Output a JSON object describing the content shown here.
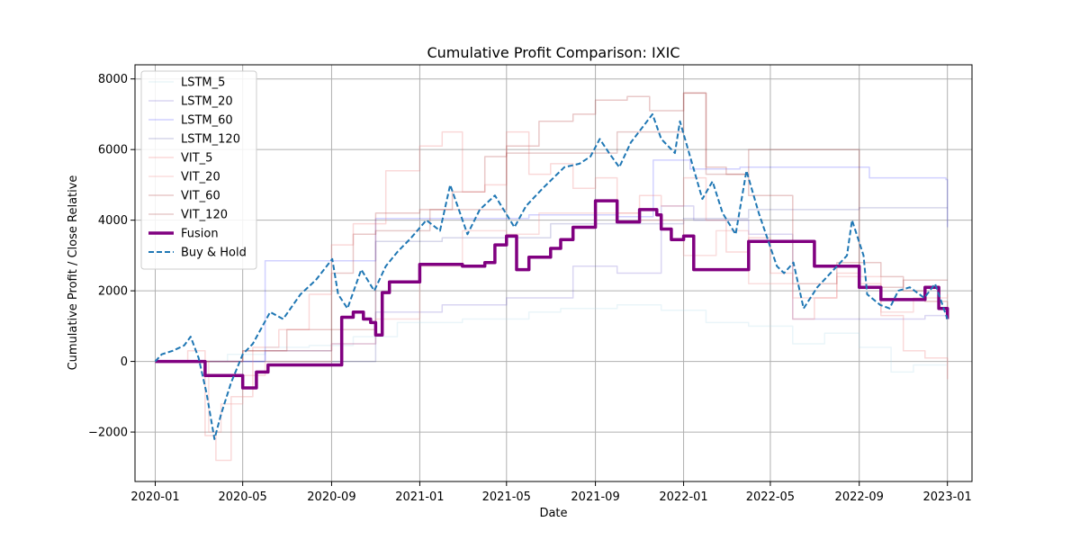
{
  "chart_data": {
    "type": "line",
    "title": "Cumulative Profit Comparison: IXIC",
    "xlabel": "Date",
    "ylabel": "Cumulative Profit / Close Relative",
    "x_ticks": [
      "2020-01",
      "2020-05",
      "2020-09",
      "2021-01",
      "2021-05",
      "2021-09",
      "2022-01",
      "2022-05",
      "2022-09",
      "2023-01"
    ],
    "y_ticks": [
      -2000,
      0,
      2000,
      4000,
      6000,
      8000
    ],
    "xlim": [
      "2019-12-04",
      "2023-02-04"
    ],
    "ylim": [
      -3400,
      8400
    ],
    "grid": true,
    "legend_position": "top-left",
    "series": [
      {
        "name": "LSTM_5",
        "color": "#add8e6",
        "opacity": 0.25,
        "width": 1.5,
        "dash": false,
        "step": true,
        "x": [
          "2020-01-01",
          "2020-03-10",
          "2020-04-10",
          "2020-06-01",
          "2020-08-01",
          "2020-10-01",
          "2020-12-01",
          "2021-03-01",
          "2021-06-01",
          "2021-07-15",
          "2021-10-01",
          "2021-12-01",
          "2022-02-01",
          "2022-04-01",
          "2022-06-01",
          "2022-07-15",
          "2022-09-01",
          "2022-10-15",
          "2022-11-15",
          "2023-01-01"
        ],
        "y": [
          0,
          0,
          200,
          400,
          450,
          700,
          1100,
          1200,
          1400,
          1500,
          1600,
          1450,
          1100,
          1000,
          500,
          800,
          400,
          -300,
          -100,
          -100
        ]
      },
      {
        "name": "LSTM_20",
        "color": "#6a5acd",
        "opacity": 0.25,
        "width": 1.5,
        "dash": false,
        "step": true,
        "x": [
          "2020-01-01",
          "2020-04-01",
          "2020-06-01",
          "2020-09-01",
          "2020-11-01",
          "2021-02-01",
          "2021-05-01",
          "2021-08-01",
          "2021-10-01",
          "2021-12-01",
          "2022-01-15",
          "2022-04-01",
          "2022-06-01",
          "2022-08-01",
          "2022-10-01",
          "2022-12-01",
          "2023-01-01"
        ],
        "y": [
          0,
          0,
          300,
          500,
          1400,
          1600,
          1800,
          2700,
          2500,
          4400,
          4000,
          3600,
          1200,
          1200,
          1200,
          1300,
          1300
        ]
      },
      {
        "name": "LSTM_60",
        "color": "#0000ff",
        "opacity": 0.18,
        "width": 1.5,
        "dash": false,
        "step": true,
        "x": [
          "2020-01-01",
          "2020-05-20",
          "2020-06-01",
          "2020-11-01",
          "2021-06-01",
          "2021-10-01",
          "2021-11-20",
          "2022-01-10",
          "2022-03-20",
          "2022-06-01",
          "2022-07-01",
          "2022-08-28",
          "2022-09-15",
          "2022-12-30",
          "2023-01-01"
        ],
        "y": [
          0,
          0,
          2850,
          4050,
          4150,
          4100,
          5700,
          5450,
          5500,
          5500,
          5500,
          5500,
          5200,
          5150,
          3800
        ]
      },
      {
        "name": "LSTM_120",
        "color": "#1a1a8c",
        "opacity": 0.18,
        "width": 1.5,
        "dash": false,
        "step": true,
        "x": [
          "2020-01-01",
          "2020-11-01",
          "2021-02-01",
          "2021-07-01",
          "2021-10-01",
          "2022-01-01",
          "2022-04-01",
          "2022-09-01",
          "2023-01-01"
        ],
        "y": [
          0,
          3400,
          3500,
          3900,
          3900,
          4050,
          4300,
          4350,
          4350
        ]
      },
      {
        "name": "VIT_5",
        "color": "#f08080",
        "opacity": 0.3,
        "width": 1.5,
        "dash": false,
        "step": true,
        "x": [
          "2020-01-01",
          "2020-02-15",
          "2020-03-10",
          "2020-03-25",
          "2020-04-15",
          "2020-05-15",
          "2020-06-20",
          "2020-08-01",
          "2020-09-01",
          "2020-10-01",
          "2020-11-15",
          "2021-01-01",
          "2021-02-01",
          "2021-03-01",
          "2021-04-01",
          "2021-05-01",
          "2021-06-01",
          "2021-07-01",
          "2021-08-01",
          "2021-09-01",
          "2021-10-01",
          "2021-11-01",
          "2021-12-01",
          "2022-01-01",
          "2022-02-01",
          "2022-03-01",
          "2022-04-01",
          "2022-05-01",
          "2022-06-01",
          "2022-07-01",
          "2022-08-01",
          "2022-09-01",
          "2022-10-01",
          "2022-11-01",
          "2022-12-01",
          "2023-01-01"
        ],
        "y": [
          0,
          300,
          -2100,
          -2800,
          -1000,
          400,
          900,
          1900,
          3300,
          3900,
          5400,
          6100,
          6500,
          4800,
          5000,
          6500,
          5300,
          5600,
          4900,
          5200,
          4200,
          4700,
          4400,
          5200,
          4000,
          3100,
          3500,
          2500,
          1200,
          1800,
          2500,
          2200,
          1300,
          300,
          100,
          -500
        ]
      },
      {
        "name": "VIT_20",
        "color": "#f0a0a0",
        "opacity": 0.35,
        "width": 1.5,
        "dash": false,
        "step": true,
        "x": [
          "2020-01-01",
          "2020-03-01",
          "2020-03-15",
          "2020-04-01",
          "2020-05-01",
          "2020-06-01",
          "2020-09-01",
          "2020-11-01",
          "2021-01-01",
          "2021-03-01",
          "2021-05-01",
          "2021-06-15",
          "2021-09-01",
          "2021-11-01",
          "2022-01-01",
          "2022-02-15",
          "2022-04-01",
          "2022-06-01",
          "2022-08-01",
          "2022-10-01",
          "2022-11-15",
          "2023-01-01"
        ],
        "y": [
          0,
          0,
          -2000,
          -1200,
          -400,
          0,
          500,
          1200,
          2700,
          3700,
          3600,
          4200,
          4200,
          4000,
          3000,
          3700,
          2200,
          1800,
          2400,
          1400,
          1800,
          1900
        ]
      },
      {
        "name": "VIT_60",
        "color": "#c06060",
        "opacity": 0.35,
        "width": 1.5,
        "dash": false,
        "step": true,
        "x": [
          "2020-01-01",
          "2020-05-01",
          "2020-07-01",
          "2020-09-01",
          "2020-10-01",
          "2020-11-01",
          "2021-01-01",
          "2021-02-15",
          "2021-04-01",
          "2021-05-01",
          "2021-06-15",
          "2021-08-01",
          "2021-09-01",
          "2021-10-15",
          "2021-11-15",
          "2022-01-01",
          "2022-02-01",
          "2022-03-01",
          "2022-04-01",
          "2022-06-01",
          "2022-08-01",
          "2022-10-01",
          "2022-11-01",
          "2022-12-01",
          "2023-01-01"
        ],
        "y": [
          0,
          300,
          900,
          2500,
          3600,
          4200,
          4300,
          4800,
          5800,
          6100,
          6800,
          7000,
          7400,
          7500,
          7100,
          7600,
          5500,
          5300,
          4700,
          2200,
          2800,
          2400,
          2000,
          1700,
          1300
        ]
      },
      {
        "name": "VIT_120",
        "color": "#a03030",
        "opacity": 0.25,
        "width": 1.5,
        "dash": false,
        "step": true,
        "x": [
          "2020-01-01",
          "2020-05-01",
          "2020-09-01",
          "2020-11-01",
          "2021-01-15",
          "2021-05-01",
          "2021-08-01",
          "2021-10-01",
          "2022-01-01",
          "2022-02-01",
          "2022-04-01",
          "2022-09-01",
          "2022-11-01",
          "2023-01-01"
        ],
        "y": [
          0,
          300,
          900,
          3700,
          4300,
          5900,
          5900,
          6500,
          7600,
          5300,
          6000,
          2100,
          2300,
          2300
        ]
      },
      {
        "name": "Fusion",
        "color": "#800080",
        "opacity": 1.0,
        "width": 3.5,
        "dash": false,
        "step": true,
        "x": [
          "2020-01-01",
          "2020-03-05",
          "2020-03-10",
          "2020-04-25",
          "2020-05-01",
          "2020-05-20",
          "2020-06-05",
          "2020-09-15",
          "2020-10-01",
          "2020-10-15",
          "2020-10-25",
          "2020-11-01",
          "2020-11-10",
          "2020-11-20",
          "2021-01-01",
          "2021-03-01",
          "2021-04-01",
          "2021-04-15",
          "2021-05-01",
          "2021-05-15",
          "2021-06-01",
          "2021-07-01",
          "2021-07-15",
          "2021-08-01",
          "2021-08-15",
          "2021-09-01",
          "2021-10-01",
          "2021-11-01",
          "2021-11-25",
          "2021-12-01",
          "2021-12-15",
          "2022-01-01",
          "2022-01-15",
          "2022-03-15",
          "2022-04-01",
          "2022-07-01",
          "2022-08-01",
          "2022-09-01",
          "2022-10-01",
          "2022-12-01",
          "2022-12-20",
          "2023-01-01"
        ],
        "y": [
          0,
          0,
          -400,
          -400,
          -750,
          -300,
          -100,
          1250,
          1400,
          1200,
          1100,
          750,
          1950,
          2250,
          2750,
          2700,
          2800,
          3300,
          3550,
          2600,
          2950,
          3200,
          3450,
          3800,
          3800,
          4550,
          3950,
          4300,
          4150,
          3750,
          3450,
          3550,
          2600,
          2600,
          3400,
          2700,
          2700,
          2100,
          1750,
          2100,
          1500,
          1200
        ]
      },
      {
        "name": "Buy & Hold",
        "color": "#1f77b4",
        "opacity": 1.0,
        "width": 2.0,
        "dash": true,
        "step": false,
        "x": [
          "2020-01-01",
          "2020-01-10",
          "2020-01-25",
          "2020-02-10",
          "2020-02-19",
          "2020-03-01",
          "2020-03-12",
          "2020-03-23",
          "2020-04-01",
          "2020-04-15",
          "2020-05-01",
          "2020-05-15",
          "2020-06-08",
          "2020-06-26",
          "2020-07-20",
          "2020-08-10",
          "2020-09-02",
          "2020-09-10",
          "2020-09-23",
          "2020-10-12",
          "2020-10-30",
          "2020-11-15",
          "2020-12-01",
          "2020-12-20",
          "2021-01-10",
          "2021-01-29",
          "2021-02-12",
          "2021-03-08",
          "2021-03-25",
          "2021-04-15",
          "2021-05-12",
          "2021-05-28",
          "2021-06-20",
          "2021-07-20",
          "2021-08-10",
          "2021-08-25",
          "2021-09-07",
          "2021-09-20",
          "2021-10-04",
          "2021-10-20",
          "2021-11-19",
          "2021-12-01",
          "2021-12-20",
          "2021-12-27",
          "2022-01-10",
          "2022-01-27",
          "2022-02-10",
          "2022-02-24",
          "2022-03-14",
          "2022-03-29",
          "2022-04-15",
          "2022-04-30",
          "2022-05-10",
          "2022-05-20",
          "2022-06-02",
          "2022-06-16",
          "2022-07-05",
          "2022-08-15",
          "2022-08-22",
          "2022-09-07",
          "2022-09-12",
          "2022-09-30",
          "2022-10-13",
          "2022-10-25",
          "2022-11-10",
          "2022-11-30",
          "2022-12-15",
          "2023-01-01"
        ],
        "y": [
          0,
          200,
          300,
          450,
          700,
          100,
          -900,
          -2200,
          -1500,
          -600,
          200,
          500,
          1400,
          1200,
          1900,
          2300,
          2900,
          1900,
          1500,
          2600,
          2000,
          2700,
          3100,
          3500,
          4000,
          3700,
          5000,
          3600,
          4300,
          4700,
          3800,
          4400,
          4900,
          5500,
          5600,
          5800,
          6300,
          5900,
          5500,
          6200,
          7000,
          6300,
          5900,
          6800,
          5800,
          4600,
          5100,
          4200,
          3600,
          5400,
          4200,
          3300,
          2700,
          2500,
          2800,
          1500,
          2100,
          3000,
          4000,
          3000,
          1900,
          1600,
          1500,
          2000,
          2100,
          1800,
          2200,
          1200
        ]
      }
    ]
  }
}
